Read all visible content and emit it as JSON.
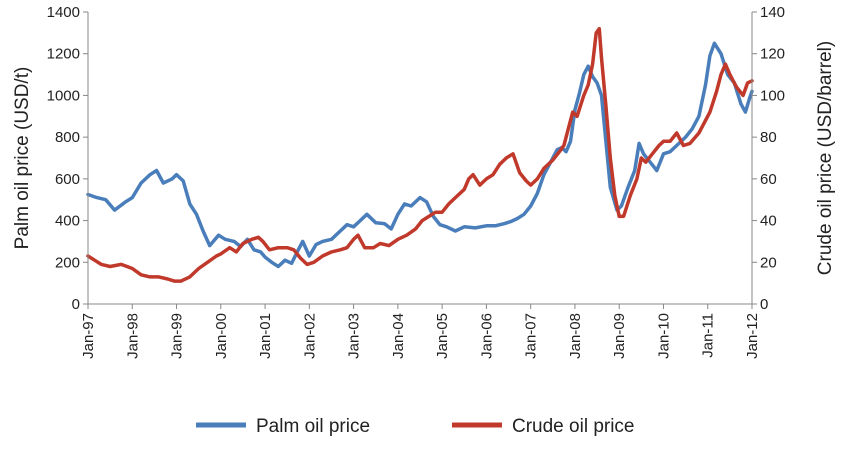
{
  "chart_data": {
    "type": "line",
    "x_categories": [
      "Jan-97",
      "Jan-98",
      "Jan-99",
      "Jan-00",
      "Jan-01",
      "Jan-02",
      "Jan-03",
      "Jan-04",
      "Jan-05",
      "Jan-06",
      "Jan-07",
      "Jan-08",
      "Jan-09",
      "Jan-10",
      "Jan-11",
      "Jan-12"
    ],
    "y_left": {
      "label": "Palm oil price (USD/t)",
      "range": [
        0,
        1400
      ],
      "ticks": [
        "0",
        "200",
        "400",
        "600",
        "800",
        "1000",
        "1200",
        "1400"
      ]
    },
    "y_right": {
      "label": "Crude oil price (USD/barrel)",
      "range": [
        0,
        140
      ],
      "ticks": [
        "0",
        "20",
        "40",
        "60",
        "80",
        "100",
        "120",
        "140"
      ]
    },
    "legend": {
      "position": "bottom"
    },
    "grid": false,
    "series": [
      {
        "name": "Palm oil price",
        "axis": "left",
        "color": "#4a7ebb",
        "points": [
          [
            1997.0,
            525
          ],
          [
            1997.2,
            510
          ],
          [
            1997.4,
            500
          ],
          [
            1997.6,
            450
          ],
          [
            1997.85,
            490
          ],
          [
            1998.0,
            510
          ],
          [
            1998.2,
            580
          ],
          [
            1998.4,
            620
          ],
          [
            1998.55,
            640
          ],
          [
            1998.7,
            580
          ],
          [
            1998.9,
            600
          ],
          [
            1999.0,
            620
          ],
          [
            1999.15,
            590
          ],
          [
            1999.3,
            480
          ],
          [
            1999.45,
            430
          ],
          [
            1999.6,
            350
          ],
          [
            1999.75,
            280
          ],
          [
            1999.95,
            330
          ],
          [
            2000.1,
            310
          ],
          [
            2000.3,
            300
          ],
          [
            2000.45,
            275
          ],
          [
            2000.6,
            310
          ],
          [
            2000.75,
            260
          ],
          [
            2000.9,
            250
          ],
          [
            2001.0,
            225
          ],
          [
            2001.15,
            200
          ],
          [
            2001.3,
            180
          ],
          [
            2001.45,
            210
          ],
          [
            2001.6,
            195
          ],
          [
            2001.75,
            260
          ],
          [
            2001.85,
            300
          ],
          [
            2002.0,
            230
          ],
          [
            2002.15,
            285
          ],
          [
            2002.3,
            300
          ],
          [
            2002.5,
            310
          ],
          [
            2002.7,
            350
          ],
          [
            2002.85,
            380
          ],
          [
            2003.0,
            370
          ],
          [
            2003.15,
            400
          ],
          [
            2003.3,
            430
          ],
          [
            2003.5,
            390
          ],
          [
            2003.7,
            385
          ],
          [
            2003.85,
            360
          ],
          [
            2004.0,
            430
          ],
          [
            2004.15,
            480
          ],
          [
            2004.3,
            470
          ],
          [
            2004.5,
            510
          ],
          [
            2004.65,
            490
          ],
          [
            2004.8,
            420
          ],
          [
            2004.95,
            380
          ],
          [
            2005.1,
            370
          ],
          [
            2005.3,
            350
          ],
          [
            2005.5,
            370
          ],
          [
            2005.75,
            365
          ],
          [
            2006.0,
            375
          ],
          [
            2006.2,
            375
          ],
          [
            2006.4,
            385
          ],
          [
            2006.55,
            395
          ],
          [
            2006.7,
            410
          ],
          [
            2006.85,
            430
          ],
          [
            2007.0,
            470
          ],
          [
            2007.15,
            530
          ],
          [
            2007.3,
            620
          ],
          [
            2007.5,
            700
          ],
          [
            2007.6,
            740
          ],
          [
            2007.7,
            750
          ],
          [
            2007.8,
            730
          ],
          [
            2007.9,
            780
          ],
          [
            2008.0,
            930
          ],
          [
            2008.1,
            1010
          ],
          [
            2008.2,
            1100
          ],
          [
            2008.3,
            1140
          ],
          [
            2008.4,
            1090
          ],
          [
            2008.5,
            1060
          ],
          [
            2008.6,
            1000
          ],
          [
            2008.7,
            780
          ],
          [
            2008.8,
            560
          ],
          [
            2008.95,
            450
          ],
          [
            2009.05,
            470
          ],
          [
            2009.2,
            560
          ],
          [
            2009.35,
            640
          ],
          [
            2009.45,
            770
          ],
          [
            2009.55,
            720
          ],
          [
            2009.7,
            680
          ],
          [
            2009.85,
            640
          ],
          [
            2010.0,
            720
          ],
          [
            2010.15,
            730
          ],
          [
            2010.3,
            760
          ],
          [
            2010.5,
            800
          ],
          [
            2010.65,
            840
          ],
          [
            2010.8,
            900
          ],
          [
            2010.95,
            1050
          ],
          [
            2011.05,
            1190
          ],
          [
            2011.15,
            1250
          ],
          [
            2011.3,
            1200
          ],
          [
            2011.45,
            1100
          ],
          [
            2011.6,
            1060
          ],
          [
            2011.75,
            960
          ],
          [
            2011.85,
            920
          ],
          [
            2011.95,
            990
          ],
          [
            2012.0,
            1020
          ]
        ]
      },
      {
        "name": "Crude oil price",
        "axis": "right",
        "color": "#c0392b",
        "points": [
          [
            1997.0,
            23
          ],
          [
            1997.15,
            21
          ],
          [
            1997.3,
            19
          ],
          [
            1997.5,
            18
          ],
          [
            1997.75,
            19
          ],
          [
            1998.0,
            17
          ],
          [
            1998.2,
            14
          ],
          [
            1998.4,
            13
          ],
          [
            1998.6,
            13
          ],
          [
            1998.8,
            12
          ],
          [
            1998.95,
            11
          ],
          [
            1999.1,
            11
          ],
          [
            1999.3,
            13
          ],
          [
            1999.5,
            17
          ],
          [
            1999.7,
            20
          ],
          [
            1999.9,
            23
          ],
          [
            2000.0,
            24
          ],
          [
            2000.2,
            27
          ],
          [
            2000.35,
            25
          ],
          [
            2000.5,
            29
          ],
          [
            2000.7,
            31
          ],
          [
            2000.85,
            32
          ],
          [
            2000.95,
            30
          ],
          [
            2001.1,
            26
          ],
          [
            2001.3,
            27
          ],
          [
            2001.5,
            27
          ],
          [
            2001.65,
            26
          ],
          [
            2001.8,
            22
          ],
          [
            2001.95,
            19
          ],
          [
            2002.1,
            20
          ],
          [
            2002.3,
            23
          ],
          [
            2002.5,
            25
          ],
          [
            2002.7,
            26
          ],
          [
            2002.85,
            27
          ],
          [
            2003.0,
            31
          ],
          [
            2003.1,
            33
          ],
          [
            2003.25,
            27
          ],
          [
            2003.45,
            27
          ],
          [
            2003.6,
            29
          ],
          [
            2003.8,
            28
          ],
          [
            2004.0,
            31
          ],
          [
            2004.2,
            33
          ],
          [
            2004.4,
            36
          ],
          [
            2004.55,
            40
          ],
          [
            2004.7,
            42
          ],
          [
            2004.85,
            44
          ],
          [
            2005.0,
            44
          ],
          [
            2005.15,
            48
          ],
          [
            2005.3,
            51
          ],
          [
            2005.5,
            55
          ],
          [
            2005.6,
            60
          ],
          [
            2005.7,
            62
          ],
          [
            2005.85,
            57
          ],
          [
            2006.0,
            60
          ],
          [
            2006.15,
            62
          ],
          [
            2006.3,
            67
          ],
          [
            2006.45,
            70
          ],
          [
            2006.6,
            72
          ],
          [
            2006.75,
            63
          ],
          [
            2006.9,
            59
          ],
          [
            2007.0,
            57
          ],
          [
            2007.15,
            60
          ],
          [
            2007.3,
            65
          ],
          [
            2007.5,
            69
          ],
          [
            2007.65,
            73
          ],
          [
            2007.75,
            76
          ],
          [
            2007.85,
            84
          ],
          [
            2007.95,
            92
          ],
          [
            2008.05,
            90
          ],
          [
            2008.2,
            100
          ],
          [
            2008.3,
            105
          ],
          [
            2008.4,
            115
          ],
          [
            2008.48,
            130
          ],
          [
            2008.55,
            132
          ],
          [
            2008.6,
            118
          ],
          [
            2008.7,
            95
          ],
          [
            2008.8,
            70
          ],
          [
            2008.9,
            52
          ],
          [
            2009.0,
            42
          ],
          [
            2009.1,
            42
          ],
          [
            2009.25,
            52
          ],
          [
            2009.4,
            60
          ],
          [
            2009.5,
            70
          ],
          [
            2009.6,
            68
          ],
          [
            2009.75,
            72
          ],
          [
            2009.9,
            76
          ],
          [
            2010.0,
            78
          ],
          [
            2010.15,
            78
          ],
          [
            2010.3,
            82
          ],
          [
            2010.45,
            76
          ],
          [
            2010.6,
            77
          ],
          [
            2010.8,
            82
          ],
          [
            2010.95,
            88
          ],
          [
            2011.05,
            92
          ],
          [
            2011.2,
            102
          ],
          [
            2011.3,
            110
          ],
          [
            2011.4,
            115
          ],
          [
            2011.5,
            110
          ],
          [
            2011.65,
            104
          ],
          [
            2011.8,
            100
          ],
          [
            2011.9,
            106
          ],
          [
            2012.0,
            107
          ]
        ]
      }
    ]
  }
}
